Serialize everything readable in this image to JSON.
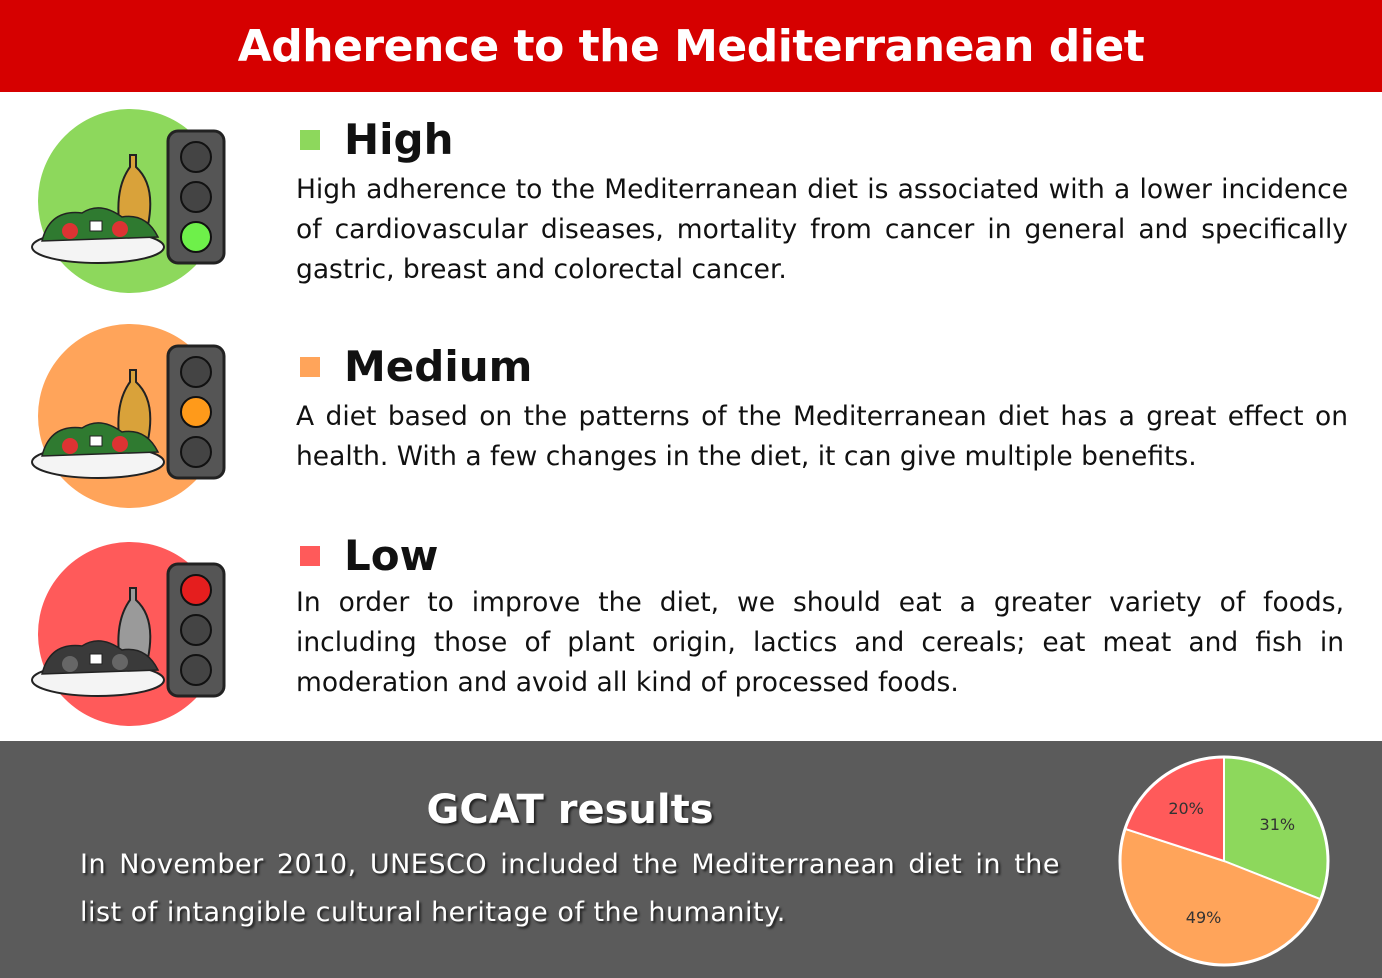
{
  "title": "Adherence to the Mediterranean diet",
  "levels": [
    {
      "name": "High",
      "color": "#8dd85c",
      "light": "green",
      "text": "High adherence to the Mediterranean diet is associated with a lower incidence of cardiovascular diseases, mortality from cancer in general and specifically gastric, breast and colorectal cancer."
    },
    {
      "name": "Medium",
      "color": "#ffa45a",
      "light": "orange",
      "text": "A diet based on the patterns of the Mediterranean diet has a great effect on health. With a few changes in the diet, it can give multiple benefits."
    },
    {
      "name": "Low",
      "color": "#ff5a5a",
      "light": "red",
      "text": "In order to improve the diet, we should eat a greater variety of foods, including those of plant origin, lactics and cereals; eat meat and fish in moderation and avoid all kind of processed foods."
    }
  ],
  "gcat": {
    "title": "GCAT results",
    "text": "In November 2010, UNESCO included the Mediterranean diet in the list of intangible cultural heritage of the humanity."
  },
  "chart_data": {
    "type": "pie",
    "categories": [
      "High",
      "Medium",
      "Low"
    ],
    "values": [
      31,
      49,
      20
    ],
    "labels": [
      "31%",
      "49%",
      "20%"
    ],
    "colors": [
      "#8dd85c",
      "#ffa45a",
      "#ff5a5a"
    ]
  }
}
